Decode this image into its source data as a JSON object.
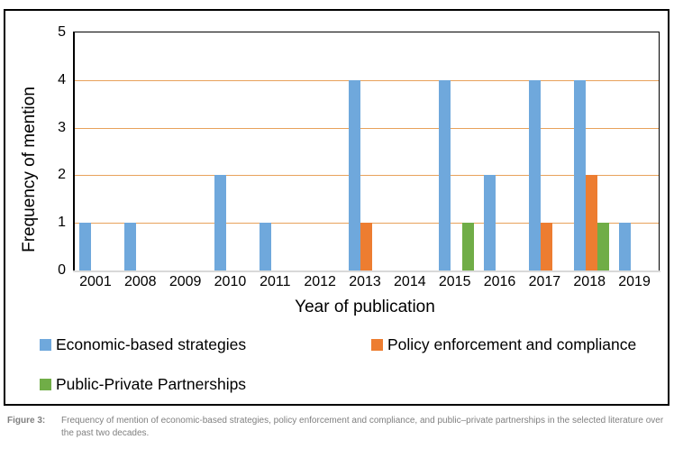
{
  "figure": {
    "caption_label": "Figure 3:",
    "caption_text": "Frequency of mention of economic-based strategies, policy enforcement and compliance, and public–private partnerships in the selected literature over the past two decades."
  },
  "chart_data": {
    "type": "bar",
    "title": "",
    "xlabel": "Year of publication",
    "ylabel": "Frequency of mention",
    "ylim": [
      0,
      5
    ],
    "yticks": [
      0,
      1,
      2,
      3,
      4,
      5
    ],
    "grid": "horizontal",
    "gridline_color": "#E8A25C",
    "baseline_color": "#d9d9d9",
    "legend_position": "bottom",
    "categories": [
      "2001",
      "2008",
      "2009",
      "2010",
      "2011",
      "2012",
      "2013",
      "2014",
      "2015",
      "2016",
      "2017",
      "2018",
      "2019"
    ],
    "series": [
      {
        "name": "Economic-based strategies",
        "color": "#6FA8DC",
        "values": [
          1,
          1,
          0,
          2,
          1,
          0,
          4,
          0,
          4,
          2,
          4,
          4,
          1
        ]
      },
      {
        "name": "Policy enforcement and compliance",
        "color": "#ED7D31",
        "values": [
          0,
          0,
          0,
          0,
          0,
          0,
          1,
          0,
          0,
          0,
          1,
          2,
          0
        ]
      },
      {
        "name": "Public-Private Partnerships",
        "color": "#70AD47",
        "values": [
          0,
          0,
          0,
          0,
          0,
          0,
          0,
          0,
          1,
          0,
          0,
          1,
          0
        ]
      }
    ]
  }
}
